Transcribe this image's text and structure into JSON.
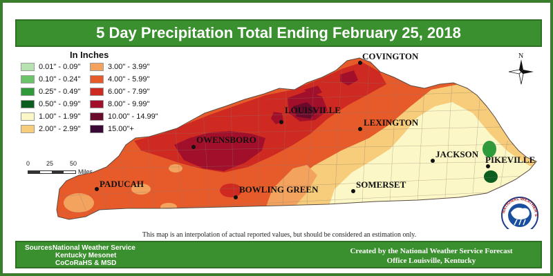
{
  "title": "5 Day Precipitation Total Ending February 25, 2018",
  "legend": {
    "title": "In Inches",
    "items": [
      {
        "label": "0.01\" - 0.09\"",
        "color": "#b6e3b0"
      },
      {
        "label": "0.10\" - 0.24\"",
        "color": "#6cc46a"
      },
      {
        "label": "0.25\" - 0.49\"",
        "color": "#2f9a3a"
      },
      {
        "label": "0.50\" - 0.99\"",
        "color": "#0b5e1d"
      },
      {
        "label": "1.00\" - 1.99\"",
        "color": "#fcf7c6"
      },
      {
        "label": "2.00\" - 2.99\"",
        "color": "#f7cc7a"
      },
      {
        "label": "3.00\" - 3.99\"",
        "color": "#f3a35e"
      },
      {
        "label": "4.00\" - 5.99\"",
        "color": "#e75a2a"
      },
      {
        "label": "6.00\" - 7.99\"",
        "color": "#cf2a22"
      },
      {
        "label": "8.00\" - 9.99\"",
        "color": "#a10f2a"
      },
      {
        "label": "10.00\" - 14.99\"",
        "color": "#6a0b2c"
      },
      {
        "label": "15.00\"+",
        "color": "#3a0a36"
      }
    ]
  },
  "scale": {
    "ticks": [
      "0",
      "25",
      "50"
    ],
    "unit": "Miles"
  },
  "north": "N",
  "cities": {
    "covington": "COVINGTON",
    "louisville": "LOUISVILLE",
    "lexington": "LEXINGTON",
    "owensboro": "OWENSBORO",
    "paducah": "PADUCAH",
    "bowling_green": "BOWLING GREEN",
    "somerset": "SOMERSET",
    "jackson": "JACKSON",
    "pikeville": "PIKEVILLE"
  },
  "disclaimer": "This map is an interpolation of actual reported values, but should be considered an estimation only.",
  "sources": {
    "label": "Sources:",
    "lines": [
      "National Weather Service",
      "Kentucky Mesonet",
      "CoCoRaHS & MSD"
    ]
  },
  "credit": [
    "Created by the National Weather Service Forecast",
    "Office Louisville, Kentucky"
  ],
  "logo": {
    "text": "NATIONAL WEATHER SERVICE"
  }
}
